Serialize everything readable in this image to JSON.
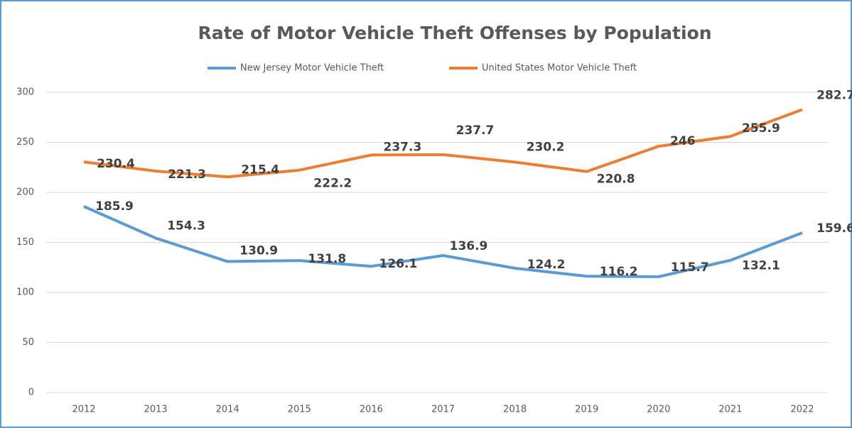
{
  "chart_data": {
    "type": "line",
    "title": "Rate of Motor Vehicle Theft Offenses by Population",
    "categories": [
      "2012",
      "2013",
      "2014",
      "2015",
      "2016",
      "2017",
      "2018",
      "2019",
      "2020",
      "2021",
      "2022"
    ],
    "series": [
      {
        "name": "New Jersey Motor Vehicle Theft",
        "color": "#5b9bd5",
        "values": [
          185.9,
          154.3,
          130.9,
          131.8,
          126.1,
          136.9,
          124.2,
          116.2,
          115.7,
          132.1,
          159.6
        ]
      },
      {
        "name": "United States Motor Vehicle Theft",
        "color": "#ed7d31",
        "values": [
          230.4,
          221.3,
          215.4,
          222.2,
          237.3,
          237.7,
          230.2,
          220.8,
          246,
          255.9,
          282.7
        ]
      }
    ],
    "ylim": [
      0,
      300
    ],
    "yticks": [
      0,
      50,
      100,
      150,
      200,
      250,
      300
    ],
    "grid": true,
    "legend": "top"
  }
}
